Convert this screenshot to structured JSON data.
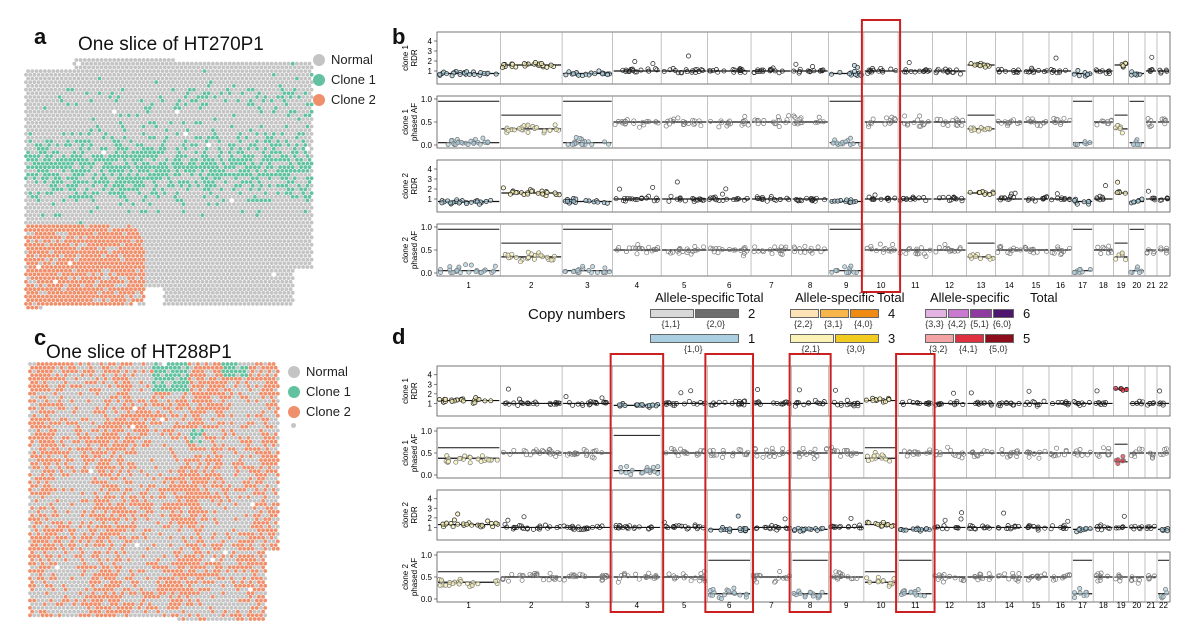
{
  "panel_labels": {
    "a": "a",
    "b": "b",
    "c": "c",
    "d": "d"
  },
  "panel_a": {
    "title": "One slice of HT270P1"
  },
  "panel_c": {
    "title": "One slice of HT288P1"
  },
  "legend": {
    "items": [
      {
        "label": "Normal",
        "color": "#c4c4c4"
      },
      {
        "label": "Clone 1",
        "color": "#62c2a0"
      },
      {
        "label": "Clone 2",
        "color": "#f08f6b"
      }
    ]
  },
  "copy_numbers": {
    "title": "Copy numbers",
    "allele_specific_label": "Allele-specific",
    "total_label": "Total",
    "groups": [
      {
        "total": "2",
        "states": [
          {
            "label": "{1,1}",
            "color": "#d9d9d9"
          },
          {
            "label": "{2,0}",
            "color": "#6e6e6e"
          }
        ]
      },
      {
        "total": "1",
        "states": [
          {
            "label": "{1,0}",
            "color": "#a9cfe0"
          }
        ]
      },
      {
        "total": "4",
        "states": [
          {
            "label": "{2,2}",
            "color": "#fde3b6"
          },
          {
            "label": "{3,1}",
            "color": "#f7b54a"
          },
          {
            "label": "{4,0}",
            "color": "#ef8a12"
          }
        ]
      },
      {
        "total": "3",
        "states": [
          {
            "label": "{2,1}",
            "color": "#fbf3b6"
          },
          {
            "label": "{3,0}",
            "color": "#f1cb1f"
          }
        ]
      },
      {
        "total": "6",
        "states": [
          {
            "label": "{3,3}",
            "color": "#e2b3e3"
          },
          {
            "label": "{4,2}",
            "color": "#c77ad0"
          },
          {
            "label": "{5,1}",
            "color": "#8e3aa0"
          },
          {
            "label": "{6,0}",
            "color": "#4f1670"
          }
        ]
      },
      {
        "total": "5",
        "states": [
          {
            "label": "{3,2}",
            "color": "#f3a3a3"
          },
          {
            "label": "{4,1}",
            "color": "#df3040"
          },
          {
            "label": "{5,0}",
            "color": "#8e0d1c"
          }
        ]
      }
    ]
  },
  "chart_data": [
    {
      "type": "scatter",
      "id": "b",
      "chromosomes": [
        "1",
        "2",
        "3",
        "4",
        "5",
        "6",
        "7",
        "8",
        "9",
        "10",
        "11",
        "12",
        "13",
        "14",
        "15",
        "16",
        "17",
        "18",
        "19",
        "20",
        "21",
        "22"
      ],
      "highlighted_chromosomes": [
        "10"
      ],
      "tracks": [
        {
          "ylabel": "clone 1\nRDR",
          "yticks": [
            "4",
            "3",
            "2",
            "1"
          ],
          "ylim": [
            0,
            4.6
          ]
        },
        {
          "ylabel": "clone 1\nphased AF",
          "yticks": [
            "1.0",
            "0.5",
            "0.0"
          ],
          "ylim": [
            0,
            1
          ]
        },
        {
          "ylabel": "clone 2\nRDR",
          "yticks": [
            "4",
            "3",
            "2",
            "1"
          ],
          "ylim": [
            0,
            4.6
          ]
        },
        {
          "ylabel": "clone 2\nphased AF",
          "yticks": [
            "1.0",
            "0.5",
            "0.0"
          ],
          "ylim": [
            0,
            1
          ]
        }
      ]
    },
    {
      "type": "scatter",
      "id": "d",
      "chromosomes": [
        "1",
        "2",
        "3",
        "4",
        "5",
        "6",
        "7",
        "8",
        "9",
        "10",
        "11",
        "12",
        "13",
        "14",
        "15",
        "16",
        "17",
        "18",
        "19",
        "20",
        "21",
        "22"
      ],
      "highlighted_chromosomes": [
        "4",
        "6",
        "8",
        "11"
      ],
      "tracks": [
        {
          "ylabel": "clone 1\nRDR",
          "yticks": [
            "4",
            "3",
            "2",
            "1"
          ],
          "ylim": [
            0,
            4.6
          ]
        },
        {
          "ylabel": "clone 1\nphased AF",
          "yticks": [
            "1.0",
            "0.5",
            "0.0"
          ],
          "ylim": [
            0,
            1
          ]
        },
        {
          "ylabel": "clone 2\nRDR",
          "yticks": [
            "4",
            "3",
            "2",
            "1"
          ],
          "ylim": [
            0,
            4.6
          ]
        },
        {
          "ylabel": "clone 2\nphased AF",
          "yticks": [
            "1.0",
            "0.5",
            "0.0"
          ],
          "ylim": [
            0,
            1
          ]
        }
      ]
    }
  ]
}
